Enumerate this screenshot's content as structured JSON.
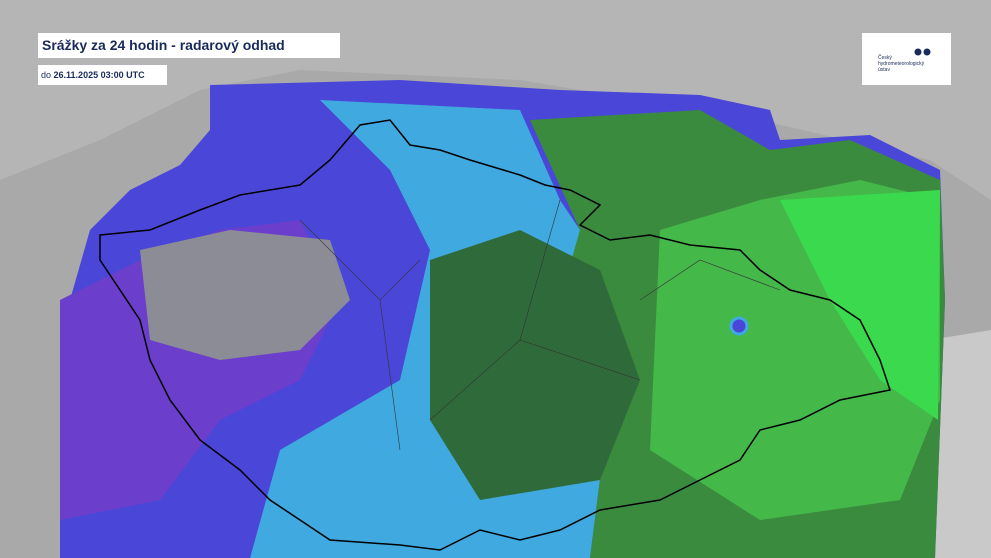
{
  "header": {
    "title": "Srážky za 24 hodin - radarový odhad",
    "valid_prefix": "do",
    "valid_time": "26.11.2025 03:00 UTC"
  },
  "logo": {
    "lines": [
      "Český",
      "hydrometeorologický",
      "ústav"
    ]
  }
}
